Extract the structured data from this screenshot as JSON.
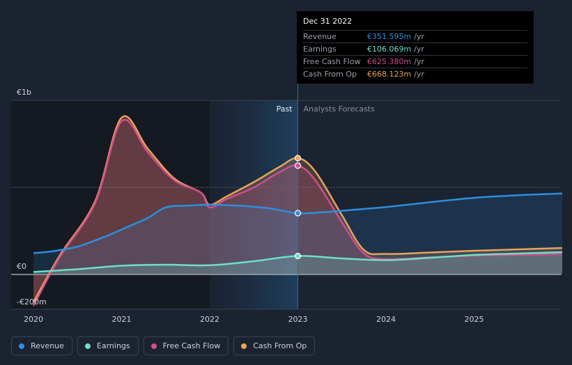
{
  "chart_data": {
    "type": "area",
    "title": "",
    "xlabel": "",
    "ylabel": "",
    "ylim": [
      -200,
      1000
    ],
    "y_tick_labels": [
      "€1b",
      "€0",
      "-€200m"
    ],
    "x_tick_labels": [
      "2020",
      "2021",
      "2022",
      "2023",
      "2024",
      "2025"
    ],
    "region_labels": {
      "past": "Past",
      "forecast": "Analysts Forecasts"
    },
    "series": [
      {
        "name": "Revenue",
        "color": "#2d8fdf",
        "points": [
          [
            2020.0,
            123
          ],
          [
            2020.2,
            132
          ],
          [
            2020.5,
            160
          ],
          [
            2020.8,
            215
          ],
          [
            2021.1,
            280
          ],
          [
            2021.3,
            325
          ],
          [
            2021.5,
            385
          ],
          [
            2021.75,
            395
          ],
          [
            2022.0,
            400
          ],
          [
            2022.4,
            393
          ],
          [
            2022.7,
            378
          ],
          [
            2023.0,
            352
          ],
          [
            2023.3,
            358
          ],
          [
            2023.6,
            370
          ],
          [
            2024.0,
            387
          ],
          [
            2024.5,
            415
          ],
          [
            2025.0,
            440
          ],
          [
            2025.5,
            455
          ],
          [
            2026.0,
            465
          ]
        ]
      },
      {
        "name": "Earnings",
        "color": "#6ee0c8",
        "points": [
          [
            2020.0,
            14
          ],
          [
            2020.5,
            30
          ],
          [
            2021.0,
            50
          ],
          [
            2021.5,
            56
          ],
          [
            2022.0,
            53
          ],
          [
            2022.5,
            76
          ],
          [
            2023.0,
            106
          ],
          [
            2023.5,
            92
          ],
          [
            2024.0,
            82
          ],
          [
            2024.5,
            96
          ],
          [
            2025.0,
            112
          ],
          [
            2025.5,
            120
          ],
          [
            2026.0,
            128
          ]
        ]
      },
      {
        "name": "Free Cash Flow",
        "color": "#d34e8e",
        "points": [
          [
            2020.0,
            -180
          ],
          [
            2020.3,
            100
          ],
          [
            2020.7,
            410
          ],
          [
            2021.0,
            880
          ],
          [
            2021.3,
            700
          ],
          [
            2021.6,
            540
          ],
          [
            2021.9,
            470
          ],
          [
            2022.0,
            385
          ],
          [
            2022.2,
            435
          ],
          [
            2022.5,
            500
          ],
          [
            2022.8,
            590
          ],
          [
            2023.0,
            625
          ],
          [
            2023.2,
            540
          ],
          [
            2023.5,
            300
          ],
          [
            2023.75,
            120
          ],
          [
            2024.0,
            88
          ],
          [
            2024.5,
            98
          ],
          [
            2025.0,
            108
          ],
          [
            2025.5,
            112
          ],
          [
            2026.0,
            118
          ]
        ]
      },
      {
        "name": "Cash From Op",
        "color": "#e9a45a",
        "points": [
          [
            2020.0,
            -160
          ],
          [
            2020.3,
            110
          ],
          [
            2020.7,
            420
          ],
          [
            2021.0,
            900
          ],
          [
            2021.3,
            720
          ],
          [
            2021.6,
            550
          ],
          [
            2021.9,
            470
          ],
          [
            2022.0,
            400
          ],
          [
            2022.2,
            450
          ],
          [
            2022.5,
            530
          ],
          [
            2022.8,
            620
          ],
          [
            2023.0,
            668
          ],
          [
            2023.2,
            590
          ],
          [
            2023.5,
            340
          ],
          [
            2023.75,
            140
          ],
          [
            2024.0,
            118
          ],
          [
            2024.5,
            126
          ],
          [
            2025.0,
            136
          ],
          [
            2025.5,
            144
          ],
          [
            2026.0,
            152
          ]
        ]
      }
    ]
  },
  "tooltip": {
    "date": "Dec 31 2022",
    "rows": [
      {
        "label": "Revenue",
        "value": "€351.595m",
        "unit": "/yr",
        "color": "#2d8fdf"
      },
      {
        "label": "Earnings",
        "value": "€106.069m",
        "unit": "/yr",
        "color": "#6ee0c8"
      },
      {
        "label": "Free Cash Flow",
        "value": "€625.380m",
        "unit": "/yr",
        "color": "#d34e8e"
      },
      {
        "label": "Cash From Op",
        "value": "€668.123m",
        "unit": "/yr",
        "color": "#e9a45a"
      }
    ]
  },
  "legend": [
    {
      "label": "Revenue",
      "color": "#2d8fdf"
    },
    {
      "label": "Earnings",
      "color": "#6ee0c8"
    },
    {
      "label": "Free Cash Flow",
      "color": "#d34e8e"
    },
    {
      "label": "Cash From Op",
      "color": "#e9a45a"
    }
  ]
}
